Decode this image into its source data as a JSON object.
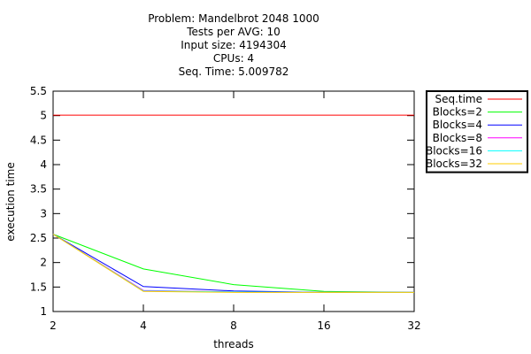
{
  "chart_data": {
    "type": "line",
    "title_lines": [
      "Problem: Mandelbrot 2048 1000",
      "Tests per AVG: 10",
      "Input size: 4194304",
      "CPUs: 4",
      "Seq. Time: 5.009782"
    ],
    "xlabel": "threads",
    "ylabel": "execution time",
    "x_scale": "log2",
    "x_ticks": [
      2,
      4,
      8,
      16,
      32
    ],
    "y_ticks": [
      1,
      1.5,
      2,
      2.5,
      3,
      3.5,
      4,
      4.5,
      5,
      5.5
    ],
    "y_tick_labels": [
      "1",
      "1.5",
      "2",
      "2.5",
      "3",
      "3.5",
      "4",
      "4.5",
      "5",
      "5.5"
    ],
    "xlim": [
      2,
      32
    ],
    "ylim": [
      1,
      5.5
    ],
    "grid": false,
    "legend_position": "outside-right-top",
    "series": [
      {
        "name": "Seq.time",
        "color": "#ff0000",
        "x": [
          2,
          32
        ],
        "y": [
          5.0098,
          5.0098
        ]
      },
      {
        "name": "Blocks=2",
        "color": "#00ff00",
        "x": [
          2,
          4,
          8,
          16,
          32
        ],
        "y": [
          2.58,
          1.87,
          1.55,
          1.41,
          1.39
        ]
      },
      {
        "name": "Blocks=4",
        "color": "#0000ff",
        "x": [
          2,
          4,
          8,
          16,
          32
        ],
        "y": [
          2.58,
          1.51,
          1.42,
          1.39,
          1.39
        ]
      },
      {
        "name": "Blocks=8",
        "color": "#ff00ff",
        "x": [
          2,
          4,
          8,
          16,
          32
        ],
        "y": [
          2.58,
          1.43,
          1.4,
          1.39,
          1.39
        ]
      },
      {
        "name": "Blocks=16",
        "color": "#00ffff",
        "x": [
          2,
          4,
          8,
          16,
          32
        ],
        "y": [
          2.58,
          1.42,
          1.4,
          1.39,
          1.39
        ]
      },
      {
        "name": "Blocks=32",
        "color": "#ffcc00",
        "x": [
          2,
          4,
          8,
          16,
          32
        ],
        "y": [
          2.58,
          1.41,
          1.39,
          1.39,
          1.39
        ]
      }
    ]
  }
}
